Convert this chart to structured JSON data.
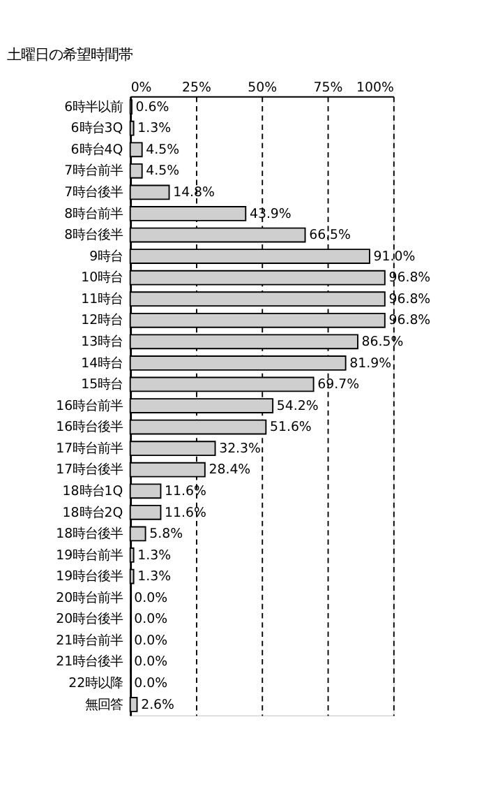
{
  "chart_data": {
    "type": "bar",
    "orientation": "horizontal",
    "title": "土曜日の希望時間帯",
    "categories": [
      "6時半以前",
      "6時台3Q",
      "6時台4Q",
      "7時台前半",
      "7時台後半",
      "8時台前半",
      "8時台後半",
      "9時台",
      "10時台",
      "11時台",
      "12時台",
      "13時台",
      "14時台",
      "15時台",
      "16時台前半",
      "16時台後半",
      "17時台前半",
      "17時台後半",
      "18時台1Q",
      "18時台2Q",
      "18時台後半",
      "19時台前半",
      "19時台後半",
      "20時台前半",
      "20時台後半",
      "21時台前半",
      "21時台後半",
      "22時以降",
      "無回答"
    ],
    "values": [
      0.6,
      1.3,
      4.5,
      4.5,
      14.8,
      43.9,
      66.5,
      91.0,
      96.8,
      96.8,
      96.8,
      86.5,
      81.9,
      69.7,
      54.2,
      51.6,
      32.3,
      28.4,
      11.6,
      11.6,
      5.8,
      1.3,
      1.3,
      0.0,
      0.0,
      0.0,
      0.0,
      0.0,
      2.6
    ],
    "value_labels": [
      "0.6%",
      "1.3%",
      "4.5%",
      "4.5%",
      "14.8%",
      "43.9%",
      "66.5%",
      "91.0%",
      "96.8%",
      "96.8%",
      "96.8%",
      "86.5%",
      "81.9%",
      "69.7%",
      "54.2%",
      "51.6%",
      "32.3%",
      "28.4%",
      "11.6%",
      "11.6%",
      "5.8%",
      "1.3%",
      "1.3%",
      "0.0%",
      "0.0%",
      "0.0%",
      "0.0%",
      "0.0%",
      "2.6%"
    ],
    "color": "#cfcfcf",
    "xlim": [
      0,
      100
    ],
    "xticks": [
      {
        "value": 0,
        "label": "0%"
      },
      {
        "value": 25,
        "label": "25%"
      },
      {
        "value": 50,
        "label": "50%"
      },
      {
        "value": 75,
        "label": "75%"
      },
      {
        "value": 100,
        "label": "100%"
      }
    ],
    "grid": "x"
  }
}
